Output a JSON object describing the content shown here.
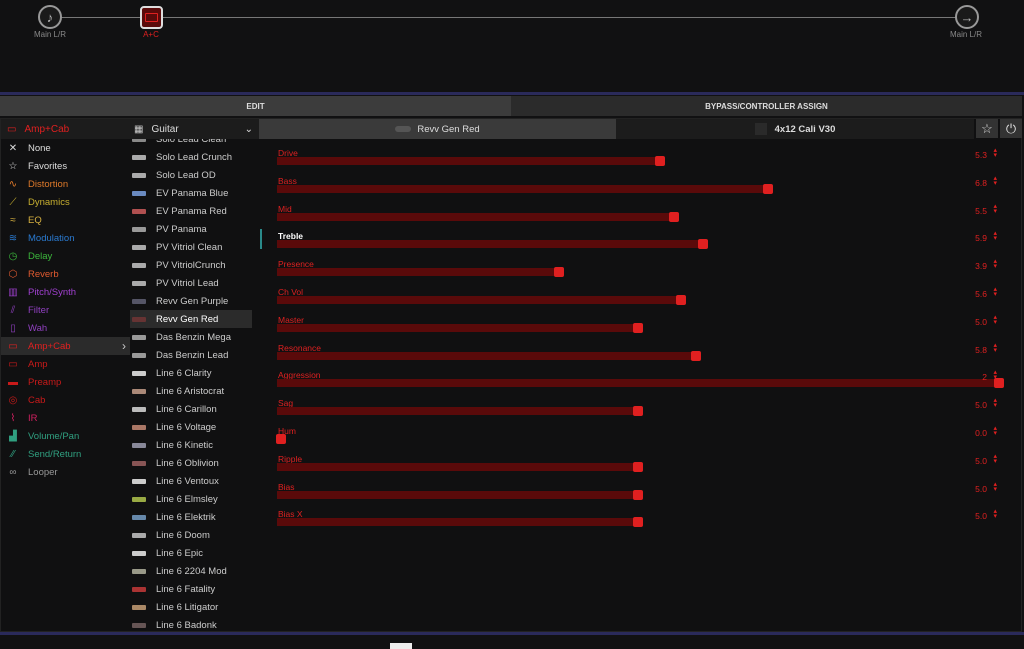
{
  "signal_chain": {
    "input_label": "Main L/R",
    "block_label": "A+C",
    "output_label": "Main L/R"
  },
  "tabs": [
    {
      "label": "EDIT",
      "active": true
    },
    {
      "label": "BYPASS/CONTROLLER ASSIGN",
      "active": false
    }
  ],
  "category_header": "Amp+Cab",
  "categories": [
    {
      "label": "None",
      "icon": "close-icon",
      "color": "#dddddd"
    },
    {
      "label": "Favorites",
      "icon": "star-icon",
      "color": "#dddddd"
    },
    {
      "label": "Distortion",
      "icon": "distortion-icon",
      "color": "#e07a2a"
    },
    {
      "label": "Dynamics",
      "icon": "dynamics-icon",
      "color": "#c8b030"
    },
    {
      "label": "EQ",
      "icon": "eq-icon",
      "color": "#d6b040"
    },
    {
      "label": "Modulation",
      "icon": "modulation-icon",
      "color": "#2a7ad0"
    },
    {
      "label": "Delay",
      "icon": "delay-icon",
      "color": "#3cb83c"
    },
    {
      "label": "Reverb",
      "icon": "reverb-icon",
      "color": "#e05a30"
    },
    {
      "label": "Pitch/Synth",
      "icon": "pitch-synth-icon",
      "color": "#a040d0"
    },
    {
      "label": "Filter",
      "icon": "filter-icon",
      "color": "#9040c0"
    },
    {
      "label": "Wah",
      "icon": "wah-icon",
      "color": "#9040c0"
    },
    {
      "label": "Amp+Cab",
      "icon": "amp-cab-icon",
      "color": "#e02020",
      "selected": true
    },
    {
      "label": "Amp",
      "icon": "amp-icon",
      "color": "#c81a1a"
    },
    {
      "label": "Preamp",
      "icon": "preamp-icon",
      "color": "#c81a1a"
    },
    {
      "label": "Cab",
      "icon": "cab-icon",
      "color": "#c81a1a"
    },
    {
      "label": "IR",
      "icon": "ir-icon",
      "color": "#d02060"
    },
    {
      "label": "Volume/Pan",
      "icon": "volume-pan-icon",
      "color": "#30a080"
    },
    {
      "label": "Send/Return",
      "icon": "send-return-icon",
      "color": "#30a080"
    },
    {
      "label": "Looper",
      "icon": "looper-icon",
      "color": "#999999"
    }
  ],
  "models_header": "Guitar",
  "models": [
    "Solo Lead Clean",
    "Solo Lead Crunch",
    "Solo Lead OD",
    "EV Panama Blue",
    "EV Panama Red",
    "PV Panama",
    "PV Vitriol Clean",
    "PV VitriolCrunch",
    "PV Vitriol Lead",
    "Revv Gen Purple",
    "Revv Gen Red",
    "Das Benzin Mega",
    "Das Benzin Lead",
    "Line 6 Clarity",
    "Line 6 Aristocrat",
    "Line 6 Carillon",
    "Line 6 Voltage",
    "Line 6 Kinetic",
    "Line 6 Oblivion",
    "Line 6 Ventoux",
    "Line 6 Elmsley",
    "Line 6 Elektrik",
    "Line 6 Doom",
    "Line 6 Epic",
    "Line 6 2204 Mod",
    "Line 6 Fatality",
    "Line 6 Litigator",
    "Line 6 Badonk"
  ],
  "selected_model": "Revv Gen Red",
  "amp_tab": "Revv Gen Red",
  "cab_tab": "4x12 Cali V30",
  "colors": {
    "accent": "#e02020",
    "track": "#5a0a0a"
  },
  "params": [
    {
      "label": "Drive",
      "value": "5.3",
      "fraction": 0.53
    },
    {
      "label": "Bass",
      "value": "6.8",
      "fraction": 0.68
    },
    {
      "label": "Mid",
      "value": "5.5",
      "fraction": 0.55
    },
    {
      "label": "Treble",
      "value": "5.9",
      "fraction": 0.59,
      "selected": true
    },
    {
      "label": "Presence",
      "value": "3.9",
      "fraction": 0.39
    },
    {
      "label": "Ch Vol",
      "value": "5.6",
      "fraction": 0.56
    },
    {
      "label": "Master",
      "value": "5.0",
      "fraction": 0.5
    },
    {
      "label": "Resonance",
      "value": "5.8",
      "fraction": 0.58
    },
    {
      "label": "Aggression",
      "value": "2",
      "fraction": 1.0
    },
    {
      "label": "Sag",
      "value": "5.0",
      "fraction": 0.5
    },
    {
      "label": "Hum",
      "value": "0.0",
      "fraction": 0.0
    },
    {
      "label": "Ripple",
      "value": "5.0",
      "fraction": 0.5
    },
    {
      "label": "Bias",
      "value": "5.0",
      "fraction": 0.5
    },
    {
      "label": "Bias X",
      "value": "5.0",
      "fraction": 0.5
    }
  ]
}
